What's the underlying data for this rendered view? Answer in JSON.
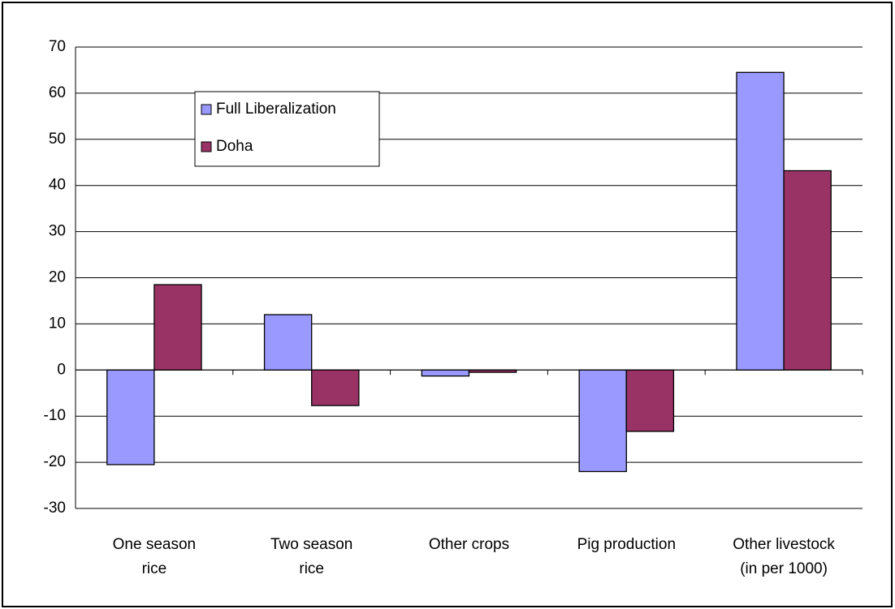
{
  "chart_data": {
    "type": "bar",
    "categories": [
      "One season\nrice",
      "Two season\nrice",
      "Other crops",
      "Pig production",
      "Other livestock\n(in per 1000)"
    ],
    "series": [
      {
        "name": "Full Liberalization",
        "color": "#9999ff",
        "values": [
          -20.5,
          12,
          -1.3,
          -22,
          64.5
        ]
      },
      {
        "name": "Doha",
        "color": "#993366",
        "values": [
          18.5,
          -7.7,
          -0.5,
          -13.3,
          43.2
        ]
      }
    ],
    "ylim": [
      -30,
      70
    ],
    "yticks": [
      -30,
      -20,
      -10,
      0,
      10,
      20,
      30,
      40,
      50,
      60,
      70
    ],
    "grid": true,
    "legend": "upper-left"
  }
}
